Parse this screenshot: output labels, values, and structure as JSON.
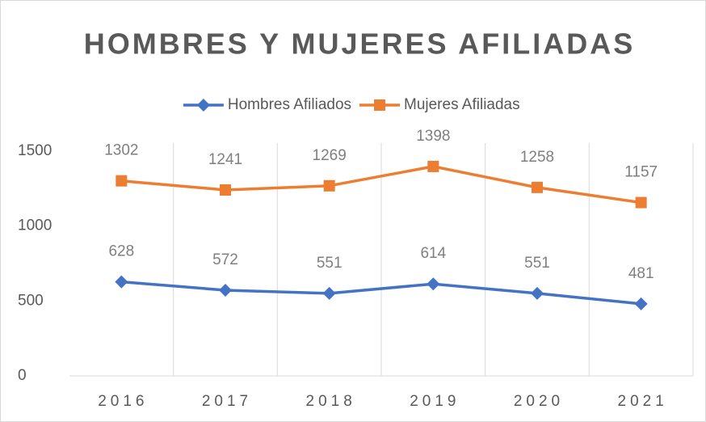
{
  "chart_data": {
    "type": "line",
    "title": "HOMBRES Y MUJERES AFILIADAS",
    "categories": [
      "2016",
      "2017",
      "2018",
      "2019",
      "2020",
      "2021"
    ],
    "series": [
      {
        "name": "Hombres Afiliados",
        "color": "#4472c4",
        "marker": "diamond",
        "values": [
          628,
          572,
          551,
          614,
          551,
          481
        ]
      },
      {
        "name": "Mujeres Afiliadas",
        "color": "#ed7d31",
        "marker": "square",
        "values": [
          1302,
          1241,
          1269,
          1398,
          1258,
          1157
        ]
      }
    ],
    "ylim": [
      0,
      1500
    ],
    "yticks": [
      0,
      500,
      1000,
      1500
    ],
    "xgrid": true,
    "ygrid": false,
    "legend": "top"
  }
}
